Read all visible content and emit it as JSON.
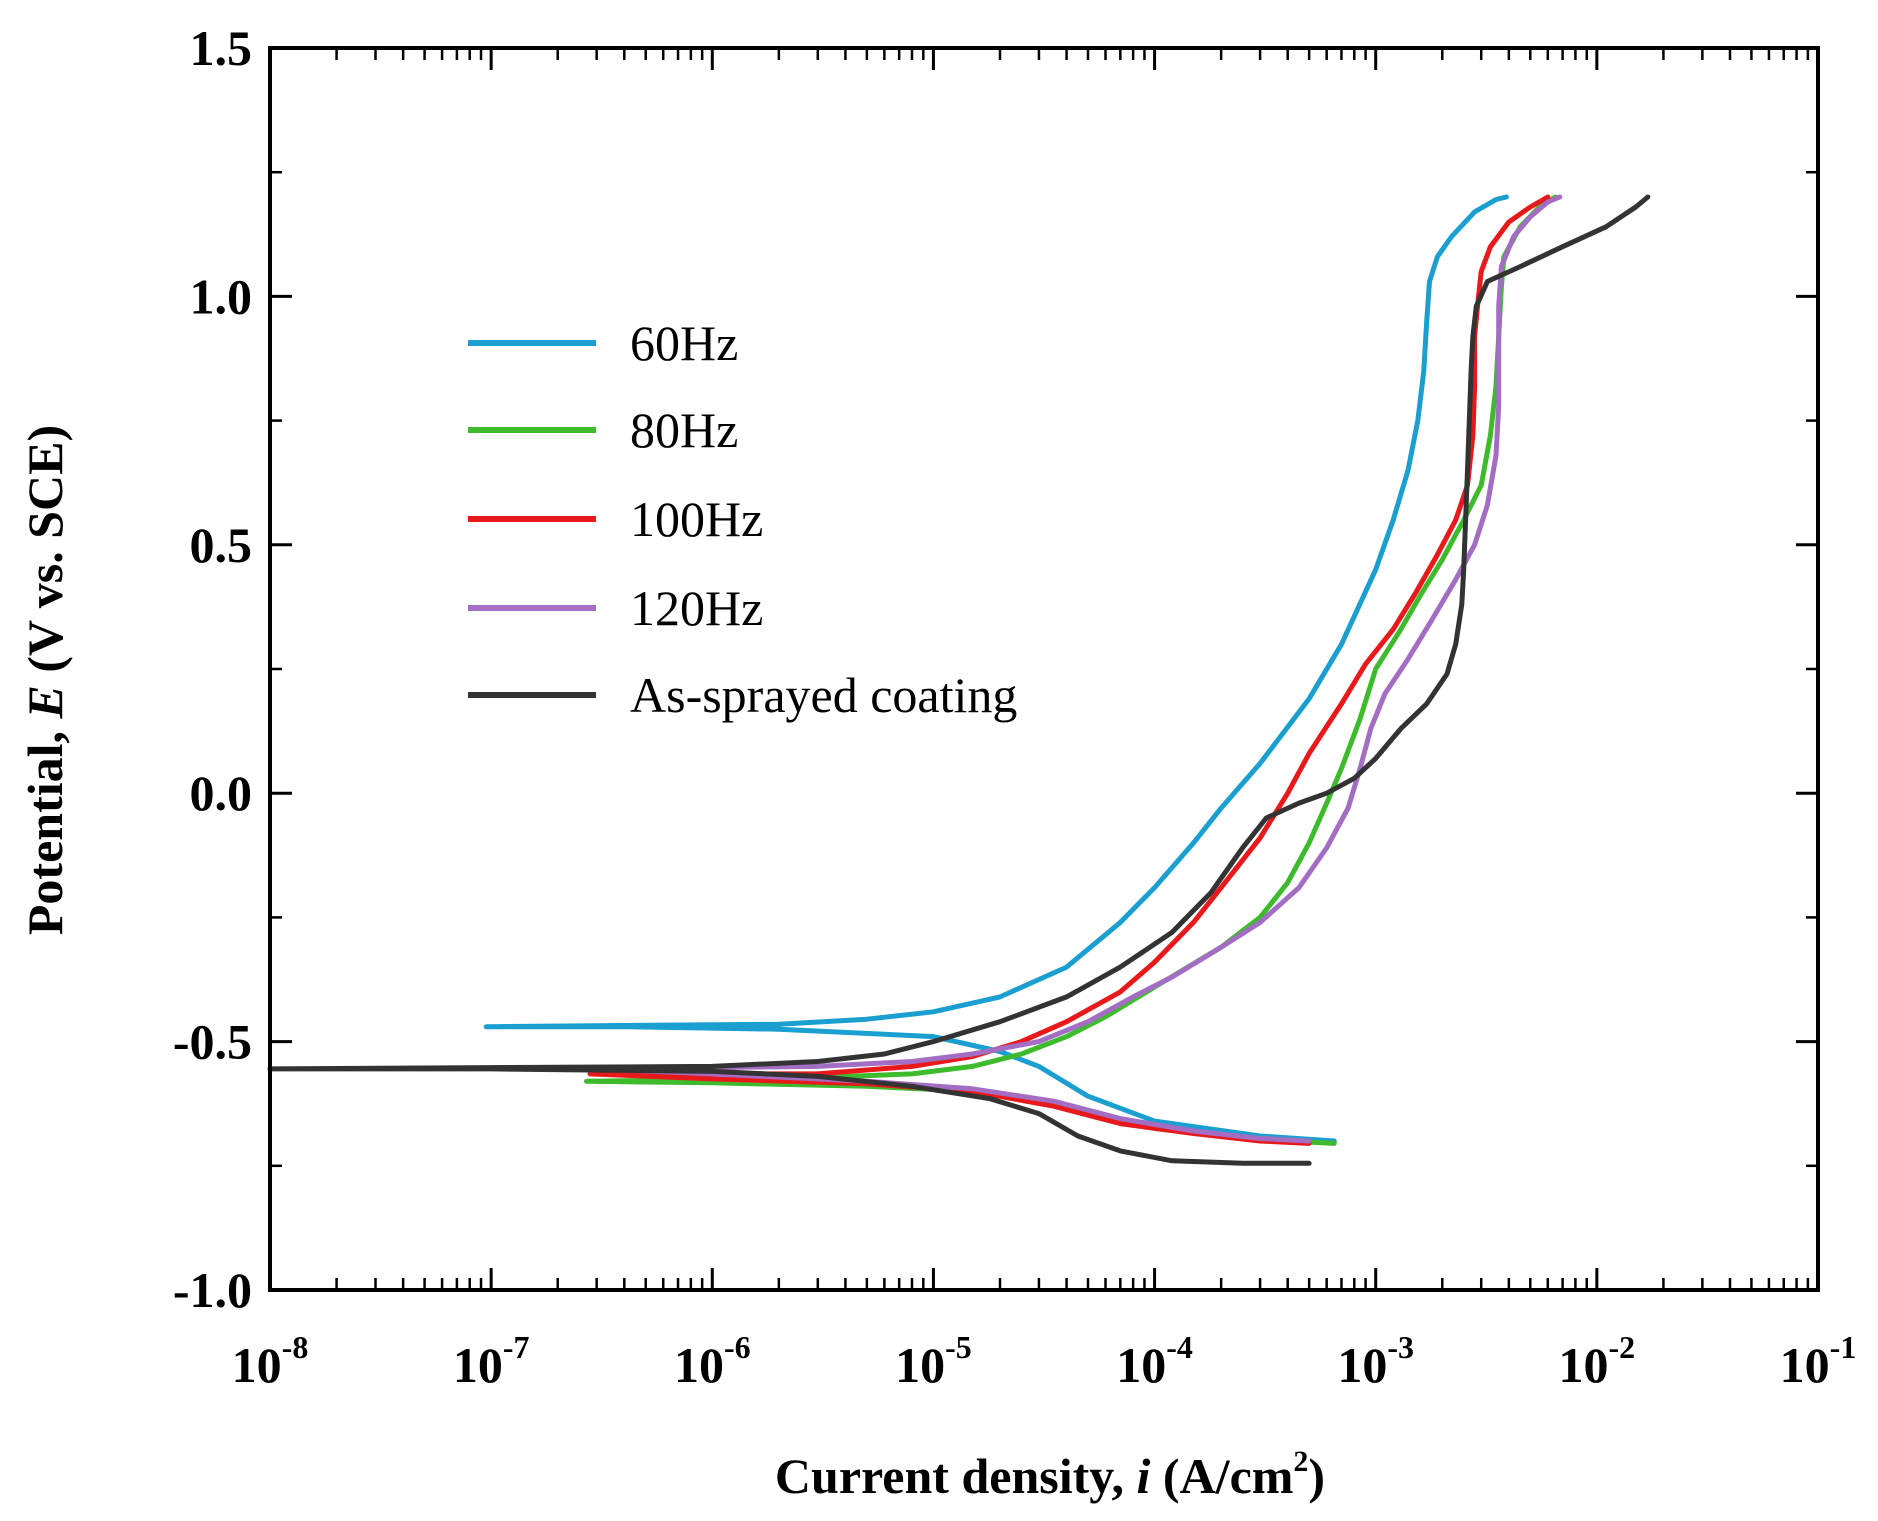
{
  "chart_data": {
    "type": "line",
    "xscale": "log",
    "xlabel_prefix": "Current density, ",
    "xlabel_var": "i",
    "xlabel_unit_pre": " (A/cm",
    "xlabel_unit_sup": "2",
    "xlabel_unit_post": ")",
    "ylabel_prefix": "Potential, ",
    "ylabel_var": "E",
    "ylabel_suffix": " (V vs. SCE)",
    "xlim": [
      1e-08,
      0.1
    ],
    "ylim": [
      -1.0,
      1.5
    ],
    "xticks": [
      {
        "value": 1e-08,
        "base": "10",
        "exp": "-8"
      },
      {
        "value": 1e-07,
        "base": "10",
        "exp": "-7"
      },
      {
        "value": 1e-06,
        "base": "10",
        "exp": "-6"
      },
      {
        "value": 1e-05,
        "base": "10",
        "exp": "-5"
      },
      {
        "value": 0.0001,
        "base": "10",
        "exp": "-4"
      },
      {
        "value": 0.001,
        "base": "10",
        "exp": "-3"
      },
      {
        "value": 0.01,
        "base": "10",
        "exp": "-2"
      },
      {
        "value": 0.1,
        "base": "10",
        "exp": "-1"
      }
    ],
    "yticks": [
      {
        "value": 1.5,
        "label": "1.5"
      },
      {
        "value": 1.0,
        "label": "1.0"
      },
      {
        "value": 0.5,
        "label": "0.5"
      },
      {
        "value": 0.0,
        "label": "0.0"
      },
      {
        "value": -0.5,
        "label": "-0.5"
      },
      {
        "value": -1.0,
        "label": "-1.0"
      }
    ],
    "legend_position": "upper-left",
    "series": [
      {
        "name": "60Hz",
        "color": "#1b9fd1",
        "points": [
          [
            0.00065,
            -0.7
          ],
          [
            0.0003,
            -0.69
          ],
          [
            0.0001,
            -0.66
          ],
          [
            5e-05,
            -0.61
          ],
          [
            3e-05,
            -0.55
          ],
          [
            2e-05,
            -0.52
          ],
          [
            1e-05,
            -0.49
          ],
          [
            2e-06,
            -0.475
          ],
          [
            4e-07,
            -0.47
          ],
          [
            9.5e-08,
            -0.47
          ],
          [
            2e-06,
            -0.465
          ],
          [
            5e-06,
            -0.455
          ],
          [
            1e-05,
            -0.44
          ],
          [
            2e-05,
            -0.41
          ],
          [
            4e-05,
            -0.35
          ],
          [
            7e-05,
            -0.26
          ],
          [
            0.0001,
            -0.19
          ],
          [
            0.00015,
            -0.1
          ],
          [
            0.0002,
            -0.03
          ],
          [
            0.0003,
            0.06
          ],
          [
            0.0005,
            0.19
          ],
          [
            0.0007,
            0.3
          ],
          [
            0.001,
            0.45
          ],
          [
            0.0012,
            0.55
          ],
          [
            0.0014,
            0.65
          ],
          [
            0.00155,
            0.75
          ],
          [
            0.00165,
            0.85
          ],
          [
            0.0017,
            0.95
          ],
          [
            0.00175,
            1.03
          ],
          [
            0.0019,
            1.08
          ],
          [
            0.0022,
            1.12
          ],
          [
            0.0028,
            1.17
          ],
          [
            0.0035,
            1.195
          ],
          [
            0.0039,
            1.2
          ]
        ]
      },
      {
        "name": "80Hz",
        "color": "#3dbb2c",
        "points": [
          [
            0.00065,
            -0.705
          ],
          [
            0.0004,
            -0.7
          ],
          [
            0.0002,
            -0.69
          ],
          [
            0.0001,
            -0.675
          ],
          [
            6e-05,
            -0.655
          ],
          [
            3e-05,
            -0.62
          ],
          [
            1.5e-05,
            -0.6
          ],
          [
            5e-06,
            -0.59
          ],
          [
            1e-06,
            -0.583
          ],
          [
            2.7e-07,
            -0.58
          ],
          [
            2e-06,
            -0.575
          ],
          [
            8e-06,
            -0.565
          ],
          [
            1.5e-05,
            -0.55
          ],
          [
            2.5e-05,
            -0.525
          ],
          [
            4e-05,
            -0.49
          ],
          [
            6e-05,
            -0.45
          ],
          [
            0.0001,
            -0.39
          ],
          [
            0.0002,
            -0.31
          ],
          [
            0.0003,
            -0.25
          ],
          [
            0.0004,
            -0.18
          ],
          [
            0.0005,
            -0.1
          ],
          [
            0.0006,
            -0.02
          ],
          [
            0.0007,
            0.05
          ],
          [
            0.00085,
            0.15
          ],
          [
            0.001,
            0.25
          ],
          [
            0.0013,
            0.33
          ],
          [
            0.0016,
            0.4
          ],
          [
            0.002,
            0.47
          ],
          [
            0.0025,
            0.55
          ],
          [
            0.003,
            0.62
          ],
          [
            0.0033,
            0.72
          ],
          [
            0.0035,
            0.82
          ],
          [
            0.0036,
            0.92
          ],
          [
            0.0037,
            1.02
          ],
          [
            0.0038,
            1.08
          ],
          [
            0.0045,
            1.14
          ],
          [
            0.0055,
            1.18
          ],
          [
            0.0065,
            1.2
          ]
        ]
      },
      {
        "name": "100Hz",
        "color": "#e8191b",
        "points": [
          [
            0.0005,
            -0.705
          ],
          [
            0.0003,
            -0.7
          ],
          [
            0.00015,
            -0.685
          ],
          [
            7e-05,
            -0.665
          ],
          [
            3.5e-05,
            -0.63
          ],
          [
            1.5e-05,
            -0.6
          ],
          [
            5e-06,
            -0.585
          ],
          [
            1e-06,
            -0.575
          ],
          [
            2.8e-07,
            -0.565
          ],
          [
            3e-06,
            -0.565
          ],
          [
            8e-06,
            -0.55
          ],
          [
            1.5e-05,
            -0.53
          ],
          [
            2.5e-05,
            -0.5
          ],
          [
            4e-05,
            -0.46
          ],
          [
            7e-05,
            -0.4
          ],
          [
            0.0001,
            -0.34
          ],
          [
            0.00015,
            -0.26
          ],
          [
            0.0002,
            -0.19
          ],
          [
            0.0003,
            -0.09
          ],
          [
            0.0004,
            0.0
          ],
          [
            0.0005,
            0.08
          ],
          [
            0.0007,
            0.18
          ],
          [
            0.0009,
            0.26
          ],
          [
            0.0012,
            0.33
          ],
          [
            0.0015,
            0.4
          ],
          [
            0.0019,
            0.48
          ],
          [
            0.0023,
            0.55
          ],
          [
            0.0026,
            0.62
          ],
          [
            0.00275,
            0.72
          ],
          [
            0.0028,
            0.82
          ],
          [
            0.0028,
            0.92
          ],
          [
            0.0029,
            0.99
          ],
          [
            0.003,
            1.05
          ],
          [
            0.0033,
            1.1
          ],
          [
            0.004,
            1.15
          ],
          [
            0.005,
            1.18
          ],
          [
            0.006,
            1.2
          ]
        ]
      },
      {
        "name": "120Hz",
        "color": "#a36dc4",
        "points": [
          [
            0.0005,
            -0.7
          ],
          [
            0.0003,
            -0.695
          ],
          [
            0.00015,
            -0.68
          ],
          [
            7e-05,
            -0.655
          ],
          [
            3.5e-05,
            -0.62
          ],
          [
            1.5e-05,
            -0.595
          ],
          [
            5e-06,
            -0.58
          ],
          [
            1e-06,
            -0.565
          ],
          [
            3e-07,
            -0.555
          ],
          [
            3e-06,
            -0.55
          ],
          [
            8e-06,
            -0.54
          ],
          [
            1.5e-05,
            -0.525
          ],
          [
            3e-05,
            -0.5
          ],
          [
            5e-05,
            -0.46
          ],
          [
            8e-05,
            -0.41
          ],
          [
            0.00012,
            -0.37
          ],
          [
            0.0002,
            -0.31
          ],
          [
            0.0003,
            -0.26
          ],
          [
            0.00045,
            -0.19
          ],
          [
            0.0006,
            -0.11
          ],
          [
            0.00075,
            -0.03
          ],
          [
            0.00085,
            0.05
          ],
          [
            0.00095,
            0.13
          ],
          [
            0.0011,
            0.2
          ],
          [
            0.0014,
            0.27
          ],
          [
            0.0018,
            0.35
          ],
          [
            0.0023,
            0.43
          ],
          [
            0.0028,
            0.5
          ],
          [
            0.0032,
            0.58
          ],
          [
            0.0035,
            0.68
          ],
          [
            0.0036,
            0.78
          ],
          [
            0.0036,
            0.88
          ],
          [
            0.0036,
            0.98
          ],
          [
            0.0037,
            1.06
          ],
          [
            0.0042,
            1.12
          ],
          [
            0.005,
            1.16
          ],
          [
            0.006,
            1.19
          ],
          [
            0.0068,
            1.2
          ]
        ]
      },
      {
        "name": "As-sprayed coating",
        "color": "#333333",
        "points": [
          [
            0.0005,
            -0.745
          ],
          [
            0.00025,
            -0.745
          ],
          [
            0.00012,
            -0.74
          ],
          [
            7e-05,
            -0.72
          ],
          [
            4.5e-05,
            -0.69
          ],
          [
            3e-05,
            -0.645
          ],
          [
            1.8e-05,
            -0.615
          ],
          [
            8e-06,
            -0.59
          ],
          [
            3e-06,
            -0.57
          ],
          [
            1e-06,
            -0.56
          ],
          [
            1e-07,
            -0.555
          ],
          [
            1e-08,
            -0.555
          ],
          [
            1e-06,
            -0.55
          ],
          [
            3e-06,
            -0.54
          ],
          [
            6e-06,
            -0.525
          ],
          [
            1e-05,
            -0.5
          ],
          [
            2e-05,
            -0.46
          ],
          [
            4e-05,
            -0.41
          ],
          [
            7e-05,
            -0.35
          ],
          [
            0.00012,
            -0.28
          ],
          [
            0.00018,
            -0.2
          ],
          [
            0.00025,
            -0.11
          ],
          [
            0.00032,
            -0.05
          ],
          [
            0.00045,
            -0.02
          ],
          [
            0.0006,
            0.0
          ],
          [
            0.0008,
            0.03
          ],
          [
            0.001,
            0.07
          ],
          [
            0.0013,
            0.13
          ],
          [
            0.0017,
            0.18
          ],
          [
            0.0021,
            0.24
          ],
          [
            0.0023,
            0.3
          ],
          [
            0.00245,
            0.38
          ],
          [
            0.0025,
            0.45
          ],
          [
            0.00255,
            0.55
          ],
          [
            0.0026,
            0.65
          ],
          [
            0.00265,
            0.75
          ],
          [
            0.0027,
            0.85
          ],
          [
            0.00275,
            0.92
          ],
          [
            0.00285,
            0.98
          ],
          [
            0.0032,
            1.03
          ],
          [
            0.0045,
            1.06
          ],
          [
            0.007,
            1.1
          ],
          [
            0.011,
            1.14
          ],
          [
            0.015,
            1.18
          ],
          [
            0.017,
            1.2
          ]
        ]
      }
    ]
  }
}
